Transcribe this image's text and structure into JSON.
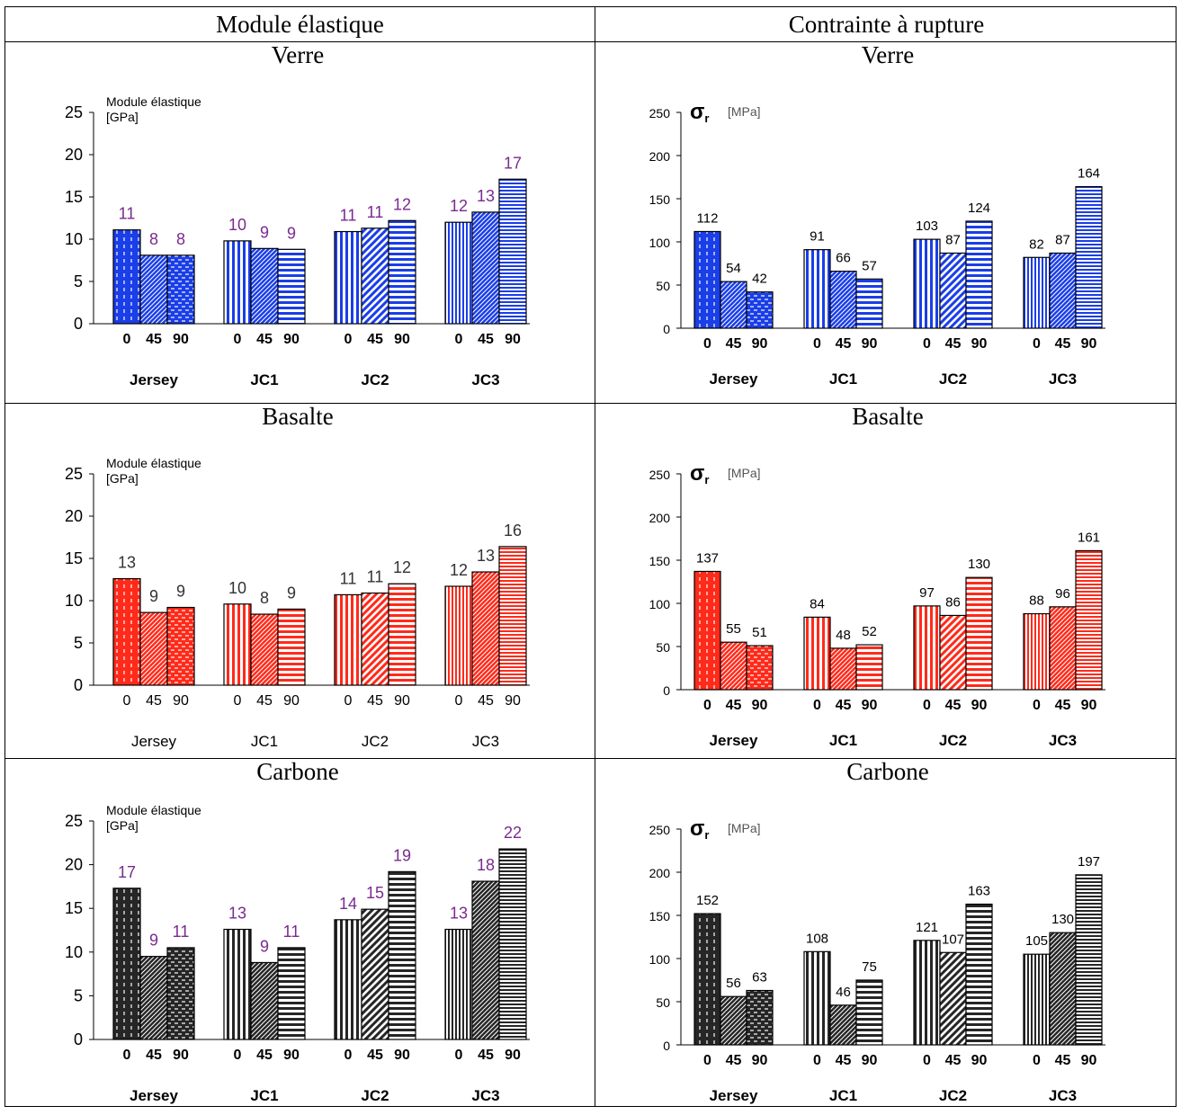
{
  "header": {
    "col_left": "Module élastique",
    "col_right": "Contrainte à rupture"
  },
  "x_ticks": [
    "0",
    "45",
    "90"
  ],
  "chart_data": [
    {
      "type": "bar",
      "panel": "modulus-verre",
      "title": "Verre",
      "ylabel": [
        "Module élastique",
        "[GPa]"
      ],
      "ylim": [
        0,
        25
      ],
      "yticks": [
        0,
        5,
        10,
        15,
        20,
        25
      ],
      "groups": [
        "Jersey",
        "JC1",
        "JC2",
        "JC3"
      ],
      "subcategories": [
        "0",
        "45",
        "90"
      ],
      "values": [
        [
          11,
          8,
          8
        ],
        [
          10,
          9,
          9
        ],
        [
          11,
          11,
          12
        ],
        [
          12,
          13,
          17
        ]
      ],
      "heights": [
        [
          11.1,
          8.1,
          8.1
        ],
        [
          9.8,
          8.9,
          8.8
        ],
        [
          10.9,
          11.3,
          12.2
        ],
        [
          12.0,
          13.2,
          17.1
        ]
      ],
      "color": "#1a3ee8",
      "label_color": "#7a2a8f",
      "bold_ticks": true
    },
    {
      "type": "bar",
      "panel": "stress-verre",
      "title": "Verre",
      "ylabel": [
        "σr",
        "[MPa]"
      ],
      "ylim": [
        0,
        250
      ],
      "yticks": [
        0,
        50,
        100,
        150,
        200,
        250
      ],
      "groups": [
        "Jersey",
        "JC1",
        "JC2",
        "JC3"
      ],
      "subcategories": [
        "0",
        "45",
        "90"
      ],
      "values": [
        [
          112,
          54,
          42
        ],
        [
          91,
          66,
          57
        ],
        [
          103,
          87,
          124
        ],
        [
          82,
          87,
          164
        ]
      ],
      "heights": [
        [
          112,
          54,
          42
        ],
        [
          91,
          66,
          57
        ],
        [
          103,
          87,
          124
        ],
        [
          82,
          87,
          164
        ]
      ],
      "color": "#1a3ee8",
      "label_color": "#000000",
      "bold_ticks": true
    },
    {
      "type": "bar",
      "panel": "modulus-basalte",
      "title": "Basalte",
      "ylabel": [
        "Module élastique",
        "[GPa]"
      ],
      "ylim": [
        0,
        25
      ],
      "yticks": [
        0,
        5,
        10,
        15,
        20,
        25
      ],
      "groups": [
        "Jersey",
        "JC1",
        "JC2",
        "JC3"
      ],
      "subcategories": [
        "0",
        "45",
        "90"
      ],
      "values": [
        [
          13,
          9,
          9
        ],
        [
          10,
          8,
          9
        ],
        [
          11,
          11,
          12
        ],
        [
          12,
          13,
          16
        ]
      ],
      "heights": [
        [
          12.6,
          8.6,
          9.2
        ],
        [
          9.6,
          8.4,
          9.0
        ],
        [
          10.7,
          10.9,
          12.0
        ],
        [
          11.7,
          13.4,
          16.4
        ]
      ],
      "color": "#ff2a1a",
      "label_color": "#333333",
      "bold_ticks": false
    },
    {
      "type": "bar",
      "panel": "stress-basalte",
      "title": "Basalte",
      "ylabel": [
        "σr",
        "[MPa]"
      ],
      "ylim": [
        0,
        250
      ],
      "yticks": [
        0,
        50,
        100,
        150,
        200,
        250
      ],
      "groups": [
        "Jersey",
        "JC1",
        "JC2",
        "JC3"
      ],
      "subcategories": [
        "0",
        "45",
        "90"
      ],
      "values": [
        [
          137,
          55,
          51
        ],
        [
          84,
          48,
          52
        ],
        [
          97,
          86,
          130
        ],
        [
          88,
          96,
          161
        ]
      ],
      "heights": [
        [
          137,
          55,
          51
        ],
        [
          84,
          48,
          52
        ],
        [
          97,
          86,
          130
        ],
        [
          88,
          96,
          161
        ]
      ],
      "color": "#ff2a1a",
      "label_color": "#000000",
      "bold_ticks": true
    },
    {
      "type": "bar",
      "panel": "modulus-carbone",
      "title": "Carbone",
      "ylabel": [
        "Module élastique",
        "[GPa]"
      ],
      "ylim": [
        0,
        25
      ],
      "yticks": [
        0,
        5,
        10,
        15,
        20,
        25
      ],
      "groups": [
        "Jersey",
        "JC1",
        "JC2",
        "JC3"
      ],
      "subcategories": [
        "0",
        "45",
        "90"
      ],
      "values": [
        [
          17,
          9,
          11
        ],
        [
          13,
          9,
          11
        ],
        [
          14,
          15,
          19
        ],
        [
          13,
          18,
          22
        ]
      ],
      "heights": [
        [
          17.3,
          9.5,
          10.5
        ],
        [
          12.6,
          8.8,
          10.5
        ],
        [
          13.7,
          14.9,
          19.2
        ],
        [
          12.6,
          18.1,
          21.8
        ]
      ],
      "color": "#262626",
      "label_color": "#7a2a8f",
      "bold_ticks": true
    },
    {
      "type": "bar",
      "panel": "stress-carbone",
      "title": "Carbone",
      "ylabel": [
        "σr",
        "[MPa]"
      ],
      "ylim": [
        0,
        250
      ],
      "yticks": [
        0,
        50,
        100,
        150,
        200,
        250
      ],
      "groups": [
        "Jersey",
        "JC1",
        "JC2",
        "JC3"
      ],
      "subcategories": [
        "0",
        "45",
        "90"
      ],
      "values": [
        [
          152,
          56,
          63
        ],
        [
          108,
          46,
          75
        ],
        [
          121,
          107,
          163
        ],
        [
          105,
          130,
          197
        ]
      ],
      "heights": [
        [
          152,
          56,
          63
        ],
        [
          108,
          46,
          75
        ],
        [
          121,
          107,
          163
        ],
        [
          105,
          130,
          197
        ]
      ],
      "color": "#262626",
      "label_color": "#000000",
      "bold_ticks": true
    }
  ]
}
